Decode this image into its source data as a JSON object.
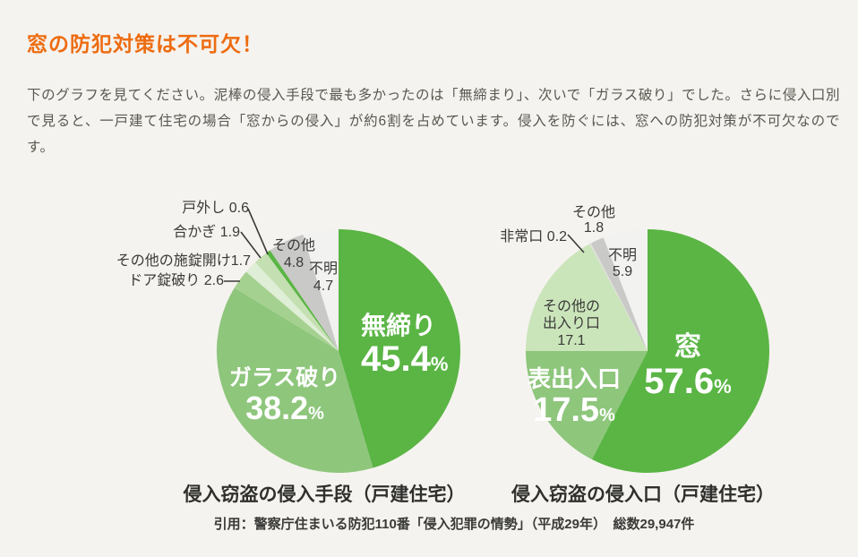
{
  "page": {
    "background": "#f5f3ef",
    "accent_color": "#ed6c11"
  },
  "header": {
    "title": "窓の防犯対策は不可欠！"
  },
  "intro": {
    "text": "下のグラフを見てください。泥棒の侵入手段で最も多かったのは「無締まり」、次いで「ガラス破り」でした。さらに侵入口別で見ると、一戸建て住宅の場合「窓からの侵入」が約6割を占めています。侵入を防ぐには、窓への防犯対策が不可欠なのです。"
  },
  "chart_data": [
    {
      "type": "pie",
      "title": "侵入窃盗の侵入手段（戸建住宅）",
      "unit": "%",
      "start_angle_deg": 0,
      "direction": "clockwise",
      "legend_position": "none",
      "slices": [
        {
          "label": "無締り",
          "value": 45.4,
          "color": "#5ab544",
          "text_color": "#ffffff"
        },
        {
          "label": "ガラス破り",
          "value": 38.2,
          "color": "#8ec67c",
          "text_color": "#ffffff"
        },
        {
          "label": "ドア錠破り",
          "value": 2.6,
          "color": "#a5d190",
          "text_color": "#3a3a38"
        },
        {
          "label": "その他の施錠開け",
          "value": 1.7,
          "color": "#dfeed6",
          "text_color": "#3a3a38"
        },
        {
          "label": "合かぎ",
          "value": 1.9,
          "color": "#c4e0b2",
          "text_color": "#3a3a38"
        },
        {
          "label": "戸外し",
          "value": 0.6,
          "color": "#5ab544",
          "text_color": "#3a3a38"
        },
        {
          "label": "その他",
          "value": 4.8,
          "color": "#c9c9c7",
          "text_color": "#3a3a38"
        },
        {
          "label": "不明",
          "value": 4.7,
          "color": "#f2f2f0",
          "text_color": "#3a3a38"
        }
      ]
    },
    {
      "type": "pie",
      "title": "侵入窃盗の侵入口（戸建住宅）",
      "unit": "%",
      "start_angle_deg": 0,
      "direction": "clockwise",
      "legend_position": "none",
      "slices": [
        {
          "label": "窓",
          "value": 57.6,
          "color": "#5ab544",
          "text_color": "#ffffff"
        },
        {
          "label": "表出入口",
          "value": 17.5,
          "color": "#8ec67c",
          "text_color": "#ffffff"
        },
        {
          "label": "その他の出入り口",
          "value": 17.1,
          "color": "#cbe5bb",
          "text_color": "#3a3a38"
        },
        {
          "label": "非常口",
          "value": 0.2,
          "color": "#e0e0de",
          "text_color": "#3a3a38"
        },
        {
          "label": "その他",
          "value": 1.8,
          "color": "#c9c9c7",
          "text_color": "#3a3a38"
        },
        {
          "label": "不明",
          "value": 5.9,
          "color": "#f2f2f0",
          "text_color": "#3a3a38"
        }
      ]
    }
  ],
  "footer": {
    "source": "引用：警察庁住まいる防犯110番「侵入犯罪の情勢」（平成29年）　総数29,947件"
  }
}
